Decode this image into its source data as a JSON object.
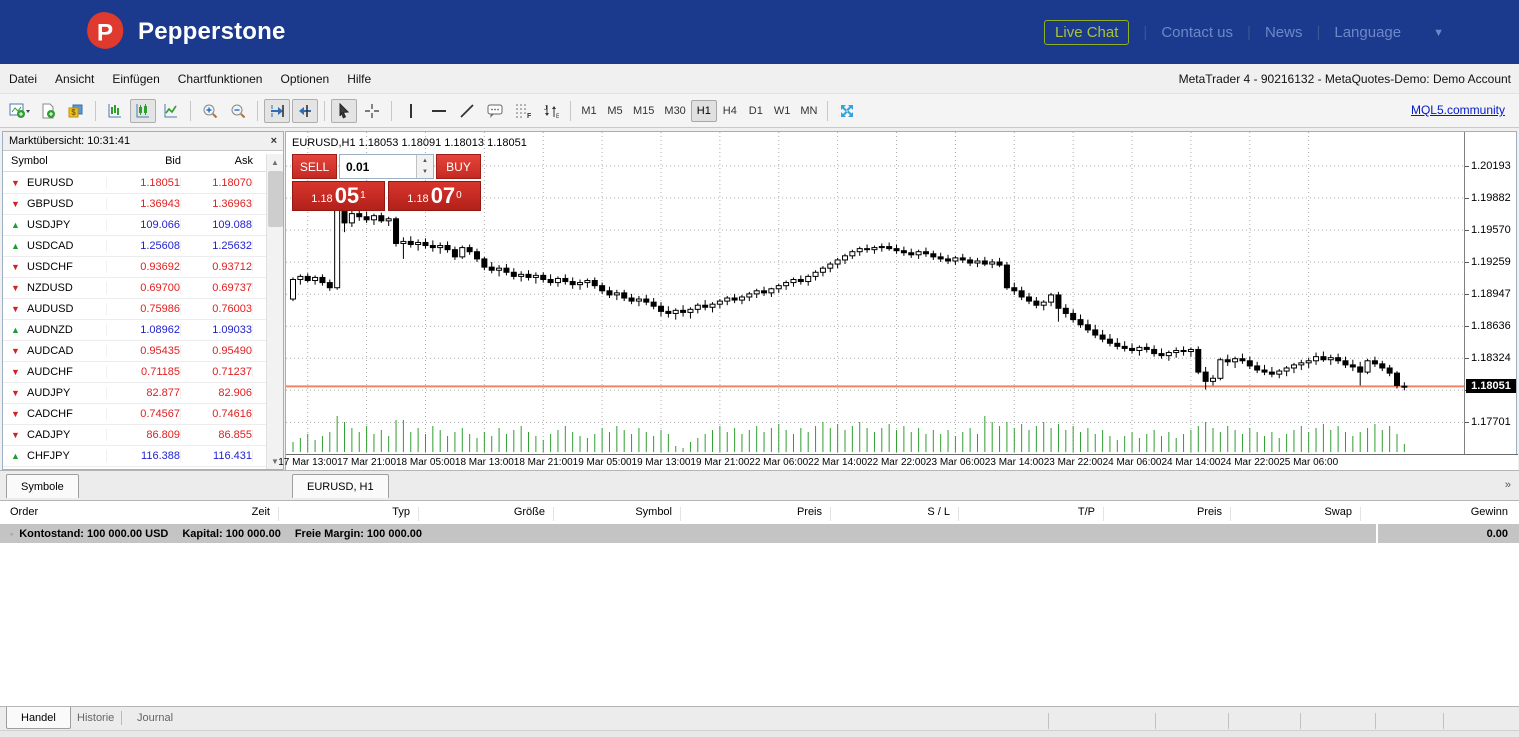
{
  "banner": {
    "logo_text": "Pepperstone",
    "live_chat": "Live Chat",
    "links": [
      "Contact us",
      "News",
      "Language"
    ],
    "colors": {
      "banner_blue": "#1b3a8e",
      "logo_red": "#e03a2f",
      "livechat_green": "#a9c13c"
    }
  },
  "menu": {
    "items": [
      "Datei",
      "Ansicht",
      "Einfügen",
      "Chartfunktionen",
      "Optionen",
      "Hilfe"
    ],
    "account_title": "MetaTrader 4 - 90216132 - MetaQuotes-Demo: Demo Account"
  },
  "toolbar": {
    "icons": [
      "new-chart",
      "new-order",
      "symbols",
      "bar-chart",
      "candle-chart",
      "line-chart",
      "zoom-in",
      "zoom-out",
      "auto-scroll",
      "chart-shift",
      "cursor",
      "crosshair",
      "vertical-line",
      "horizontal-line",
      "trend-line",
      "text-label",
      "fibonacci",
      "arrows-symbols",
      "fullscreen"
    ],
    "pressed_icons": [
      "candle-chart",
      "auto-scroll",
      "chart-shift",
      "cursor"
    ],
    "timeframes": [
      "M1",
      "M5",
      "M15",
      "M30",
      "H1",
      "H4",
      "D1",
      "W1",
      "MN"
    ],
    "active_timeframe": "H1",
    "mql5_link": "MQL5.community"
  },
  "market_watch": {
    "title": "Marktübersicht: 10:31:41",
    "close_glyph": "×",
    "columns": [
      "Symbol",
      "Bid",
      "Ask"
    ],
    "tab_label": "Symbole",
    "rows": [
      {
        "symbol": "EURUSD",
        "bid": "1.18051",
        "ask": "1.18070",
        "dir": "down",
        "tone": "red"
      },
      {
        "symbol": "GBPUSD",
        "bid": "1.36943",
        "ask": "1.36963",
        "dir": "down",
        "tone": "red"
      },
      {
        "symbol": "USDJPY",
        "bid": "109.066",
        "ask": "109.088",
        "dir": "up",
        "tone": "blue"
      },
      {
        "symbol": "USDCAD",
        "bid": "1.25608",
        "ask": "1.25632",
        "dir": "up",
        "tone": "blue"
      },
      {
        "symbol": "USDCHF",
        "bid": "0.93692",
        "ask": "0.93712",
        "dir": "down",
        "tone": "red"
      },
      {
        "symbol": "NZDUSD",
        "bid": "0.69700",
        "ask": "0.69737",
        "dir": "down",
        "tone": "red"
      },
      {
        "symbol": "AUDUSD",
        "bid": "0.75986",
        "ask": "0.76003",
        "dir": "down",
        "tone": "red"
      },
      {
        "symbol": "AUDNZD",
        "bid": "1.08962",
        "ask": "1.09033",
        "dir": "up",
        "tone": "blue"
      },
      {
        "symbol": "AUDCAD",
        "bid": "0.95435",
        "ask": "0.95490",
        "dir": "down",
        "tone": "red"
      },
      {
        "symbol": "AUDCHF",
        "bid": "0.71185",
        "ask": "0.71237",
        "dir": "down",
        "tone": "red"
      },
      {
        "symbol": "AUDJPY",
        "bid": "82.877",
        "ask": "82.906",
        "dir": "down",
        "tone": "red"
      },
      {
        "symbol": "CADCHF",
        "bid": "0.74567",
        "ask": "0.74616",
        "dir": "down",
        "tone": "red"
      },
      {
        "symbol": "CADJPY",
        "bid": "86.809",
        "ask": "86.855",
        "dir": "down",
        "tone": "red"
      },
      {
        "symbol": "CHFJPY",
        "bid": "116.388",
        "ask": "116.431",
        "dir": "up",
        "tone": "blue"
      }
    ]
  },
  "chart": {
    "tab_label": "EURUSD, H1",
    "more_tabs_glyph": "»",
    "title_overlay": "EURUSD,H1  1.18053 1.18091 1.18013 1.18051",
    "one_click": {
      "sell_label": "SELL",
      "buy_label": "BUY",
      "volume_value": "0.01",
      "sell_price": {
        "base": "1.18",
        "big": "05",
        "sup": "1"
      },
      "buy_price": {
        "base": "1.18",
        "big": "07",
        "sup": "0"
      }
    },
    "current_price_label": "1.18051"
  },
  "chart_data": {
    "type": "candlestick",
    "symbol": "EURUSD",
    "timeframe": "H1",
    "title": "EURUSD,H1  1.18053 1.18091 1.18013 1.18051",
    "grid": true,
    "legend_position": "none",
    "y_levels": [
      1.20193,
      1.19882,
      1.1957,
      1.19259,
      1.18947,
      1.18636,
      1.18324,
      1.18013,
      1.17701
    ],
    "current_price": 1.18051,
    "x_labels": [
      "17 Mar 13:00",
      "17 Mar 21:00",
      "18 Mar 05:00",
      "18 Mar 13:00",
      "18 Mar 21:00",
      "19 Mar 05:00",
      "19 Mar 13:00",
      "19 Mar 21:00",
      "22 Mar 06:00",
      "22 Mar 14:00",
      "22 Mar 22:00",
      "23 Mar 06:00",
      "23 Mar 14:00",
      "23 Mar 22:00",
      "24 Mar 06:00",
      "24 Mar 14:00",
      "24 Mar 22:00",
      "25 Mar 06:00"
    ],
    "first_label_index": 2,
    "label_step": 8,
    "price_scale": 100000,
    "candles_ohlc": [
      [
        118900,
        119110,
        118880,
        119090
      ],
      [
        119090,
        119140,
        119040,
        119120
      ],
      [
        119120,
        119150,
        119060,
        119080
      ],
      [
        119080,
        119130,
        119040,
        119110
      ],
      [
        119110,
        119140,
        119030,
        119060
      ],
      [
        119060,
        119090,
        118980,
        119010
      ],
      [
        119010,
        119870,
        118990,
        119770
      ],
      [
        119770,
        119930,
        119550,
        119640
      ],
      [
        119640,
        119760,
        119600,
        119730
      ],
      [
        119730,
        119790,
        119660,
        119700
      ],
      [
        119700,
        119750,
        119640,
        119670
      ],
      [
        119670,
        119730,
        119620,
        119710
      ],
      [
        119710,
        119740,
        119640,
        119660
      ],
      [
        119660,
        119700,
        119610,
        119680
      ],
      [
        119680,
        119700,
        119410,
        119440
      ],
      [
        119440,
        119500,
        119290,
        119460
      ],
      [
        119460,
        119510,
        119400,
        119430
      ],
      [
        119430,
        119480,
        119370,
        119450
      ],
      [
        119450,
        119490,
        119390,
        119420
      ],
      [
        119420,
        119470,
        119360,
        119400
      ],
      [
        119400,
        119450,
        119340,
        119420
      ],
      [
        119420,
        119460,
        119350,
        119380
      ],
      [
        119380,
        119410,
        119280,
        119310
      ],
      [
        119310,
        119420,
        119290,
        119400
      ],
      [
        119400,
        119430,
        119330,
        119360
      ],
      [
        119360,
        119390,
        119260,
        119290
      ],
      [
        119290,
        119310,
        119180,
        119210
      ],
      [
        119210,
        119260,
        119150,
        119180
      ],
      [
        119180,
        119230,
        119120,
        119200
      ],
      [
        119200,
        119240,
        119130,
        119160
      ],
      [
        119160,
        119200,
        119090,
        119120
      ],
      [
        119120,
        119170,
        119070,
        119140
      ],
      [
        119140,
        119180,
        119080,
        119110
      ],
      [
        119110,
        119160,
        119050,
        119130
      ],
      [
        119130,
        119160,
        119060,
        119090
      ],
      [
        119090,
        119140,
        119030,
        119060
      ],
      [
        119060,
        119120,
        119020,
        119100
      ],
      [
        119100,
        119140,
        119040,
        119070
      ],
      [
        119070,
        119110,
        119000,
        119040
      ],
      [
        119040,
        119090,
        118990,
        119060
      ],
      [
        119060,
        119100,
        119010,
        119080
      ],
      [
        119080,
        119110,
        119000,
        119030
      ],
      [
        119030,
        119060,
        118950,
        118980
      ],
      [
        118980,
        119020,
        118910,
        118940
      ],
      [
        118940,
        118990,
        118890,
        118960
      ],
      [
        118960,
        118990,
        118880,
        118910
      ],
      [
        118910,
        118950,
        118850,
        118880
      ],
      [
        118880,
        118930,
        118830,
        118900
      ],
      [
        118900,
        118940,
        118840,
        118870
      ],
      [
        118870,
        118910,
        118800,
        118830
      ],
      [
        118830,
        118870,
        118730,
        118780
      ],
      [
        118780,
        118830,
        118720,
        118760
      ],
      [
        118760,
        118810,
        118700,
        118790
      ],
      [
        118790,
        118840,
        118730,
        118770
      ],
      [
        118770,
        118820,
        118710,
        118800
      ],
      [
        118800,
        118860,
        118760,
        118840
      ],
      [
        118840,
        118890,
        118790,
        118820
      ],
      [
        118820,
        118870,
        118770,
        118850
      ],
      [
        118850,
        118900,
        118810,
        118880
      ],
      [
        118880,
        118930,
        118840,
        118910
      ],
      [
        118910,
        118950,
        118860,
        118890
      ],
      [
        118890,
        118940,
        118850,
        118920
      ],
      [
        118920,
        118970,
        118880,
        118950
      ],
      [
        118950,
        119000,
        118910,
        118980
      ],
      [
        118980,
        119020,
        118930,
        118960
      ],
      [
        118960,
        119010,
        118920,
        119000
      ],
      [
        119000,
        119050,
        118960,
        119030
      ],
      [
        119030,
        119080,
        118990,
        119060
      ],
      [
        119060,
        119110,
        119020,
        119090
      ],
      [
        119090,
        119130,
        119040,
        119070
      ],
      [
        119070,
        119140,
        119030,
        119120
      ],
      [
        119120,
        119180,
        119080,
        119160
      ],
      [
        119160,
        119220,
        119120,
        119200
      ],
      [
        119200,
        119260,
        119160,
        119240
      ],
      [
        119240,
        119300,
        119200,
        119280
      ],
      [
        119280,
        119340,
        119240,
        119320
      ],
      [
        119320,
        119380,
        119290,
        119360
      ],
      [
        119360,
        119410,
        119320,
        119390
      ],
      [
        119390,
        119430,
        119350,
        119380
      ],
      [
        119380,
        119420,
        119340,
        119400
      ],
      [
        119400,
        119440,
        119360,
        119410
      ],
      [
        119410,
        119450,
        119370,
        119390
      ],
      [
        119390,
        119430,
        119340,
        119370
      ],
      [
        119370,
        119410,
        119320,
        119350
      ],
      [
        119350,
        119390,
        119300,
        119330
      ],
      [
        119330,
        119380,
        119290,
        119360
      ],
      [
        119360,
        119400,
        119310,
        119340
      ],
      [
        119340,
        119370,
        119280,
        119310
      ],
      [
        119310,
        119350,
        119260,
        119290
      ],
      [
        119290,
        119330,
        119240,
        119270
      ],
      [
        119270,
        119320,
        119230,
        119300
      ],
      [
        119300,
        119340,
        119250,
        119280
      ],
      [
        119280,
        119310,
        119220,
        119250
      ],
      [
        119250,
        119300,
        119210,
        119270
      ],
      [
        119270,
        119310,
        119220,
        119240
      ],
      [
        119240,
        119290,
        119200,
        119260
      ],
      [
        119260,
        119300,
        119210,
        119230
      ],
      [
        119230,
        119260,
        118990,
        119010
      ],
      [
        119010,
        119060,
        118940,
        118980
      ],
      [
        118980,
        119020,
        118890,
        118920
      ],
      [
        118920,
        118960,
        118850,
        118880
      ],
      [
        118880,
        118920,
        118810,
        118840
      ],
      [
        118840,
        118890,
        118790,
        118870
      ],
      [
        118870,
        118960,
        118830,
        118940
      ],
      [
        118940,
        118970,
        118680,
        118810
      ],
      [
        118810,
        118850,
        118720,
        118760
      ],
      [
        118760,
        118800,
        118670,
        118700
      ],
      [
        118700,
        118750,
        118620,
        118650
      ],
      [
        118650,
        118700,
        118570,
        118600
      ],
      [
        118600,
        118650,
        118520,
        118550
      ],
      [
        118550,
        118600,
        118480,
        118510
      ],
      [
        118510,
        118560,
        118440,
        118470
      ],
      [
        118470,
        118520,
        118410,
        118440
      ],
      [
        118440,
        118490,
        118390,
        118420
      ],
      [
        118420,
        118470,
        118370,
        118400
      ],
      [
        118400,
        118450,
        118350,
        118430
      ],
      [
        118430,
        118470,
        118380,
        118410
      ],
      [
        118410,
        118450,
        118340,
        118370
      ],
      [
        118370,
        118420,
        118320,
        118350
      ],
      [
        118350,
        118400,
        118300,
        118380
      ],
      [
        118380,
        118430,
        118330,
        118400
      ],
      [
        118400,
        118440,
        118350,
        118390
      ],
      [
        118390,
        118430,
        118340,
        118410
      ],
      [
        118410,
        118440,
        118170,
        118190
      ],
      [
        118190,
        118240,
        118020,
        118100
      ],
      [
        118100,
        118160,
        118060,
        118130
      ],
      [
        118130,
        118330,
        118110,
        118310
      ],
      [
        118310,
        118360,
        118250,
        118290
      ],
      [
        118290,
        118340,
        118230,
        118320
      ],
      [
        118320,
        118370,
        118270,
        118300
      ],
      [
        118300,
        118340,
        118220,
        118250
      ],
      [
        118250,
        118290,
        118180,
        118210
      ],
      [
        118210,
        118260,
        118160,
        118190
      ],
      [
        118190,
        118240,
        118140,
        118170
      ],
      [
        118170,
        118220,
        118130,
        118200
      ],
      [
        118200,
        118250,
        118150,
        118230
      ],
      [
        118230,
        118280,
        118180,
        118260
      ],
      [
        118260,
        118310,
        118210,
        118280
      ],
      [
        118280,
        118330,
        118230,
        118300
      ],
      [
        118300,
        118380,
        118260,
        118340
      ],
      [
        118340,
        118390,
        118290,
        118310
      ],
      [
        118310,
        118360,
        118260,
        118330
      ],
      [
        118330,
        118370,
        118270,
        118300
      ],
      [
        118300,
        118340,
        118230,
        118260
      ],
      [
        118260,
        118310,
        118200,
        118240
      ],
      [
        118240,
        118290,
        118060,
        118190
      ],
      [
        118190,
        118320,
        118170,
        118300
      ],
      [
        118300,
        118340,
        118240,
        118270
      ],
      [
        118270,
        118300,
        118200,
        118230
      ],
      [
        118230,
        118260,
        118150,
        118180
      ],
      [
        118180,
        118200,
        118030,
        118060
      ],
      [
        118053,
        118091,
        118013,
        118051
      ]
    ],
    "volumes": [
      10,
      14,
      18,
      12,
      16,
      20,
      36,
      30,
      24,
      20,
      26,
      18,
      22,
      16,
      32,
      32,
      20,
      24,
      18,
      26,
      22,
      16,
      20,
      24,
      18,
      14,
      20,
      16,
      24,
      18,
      22,
      26,
      20,
      16,
      12,
      18,
      22,
      26,
      20,
      16,
      14,
      18,
      24,
      20,
      26,
      22,
      18,
      24,
      20,
      16,
      22,
      18,
      6,
      4,
      10,
      14,
      18,
      22,
      26,
      20,
      24,
      18,
      22,
      26,
      20,
      24,
      28,
      22,
      18,
      24,
      20,
      26,
      30,
      24,
      28,
      22,
      26,
      30,
      24,
      20,
      24,
      28,
      22,
      26,
      20,
      24,
      18,
      22,
      18,
      22,
      16,
      20,
      24,
      18,
      36,
      30,
      26,
      30,
      24,
      28,
      22,
      26,
      30,
      24,
      28,
      22,
      26,
      20,
      24,
      18,
      22,
      16,
      12,
      16,
      20,
      14,
      18,
      22,
      16,
      20,
      14,
      18,
      22,
      26,
      30,
      24,
      20,
      26,
      22,
      18,
      24,
      20,
      16,
      20,
      14,
      18,
      22,
      26,
      20,
      24,
      28,
      22,
      26,
      20,
      16,
      20,
      24,
      28,
      22,
      26,
      18,
      8
    ],
    "colors": {
      "bull": "#ffffff",
      "bear": "#000000",
      "outline": "#000000",
      "volume": "#2f9e2f",
      "grid": "#ababab",
      "bid_line": "#f98165"
    }
  },
  "terminal": {
    "columns": [
      "Order",
      "Zeit",
      "Typ",
      "Größe",
      "Symbol",
      "Preis",
      "S / L",
      "T/P",
      "Preis",
      "Swap",
      "Gewinn"
    ],
    "balance": {
      "collapse_glyph": "◦",
      "kontostand": "Kontostand: 100 000.00 USD",
      "kapital": "Kapital: 100 000.00",
      "freie_margin": "Freie Margin: 100 000.00",
      "gewinn": "0.00"
    },
    "tabs": [
      "Handel",
      "Historie",
      "Journal"
    ],
    "active_tab": "Handel"
  }
}
